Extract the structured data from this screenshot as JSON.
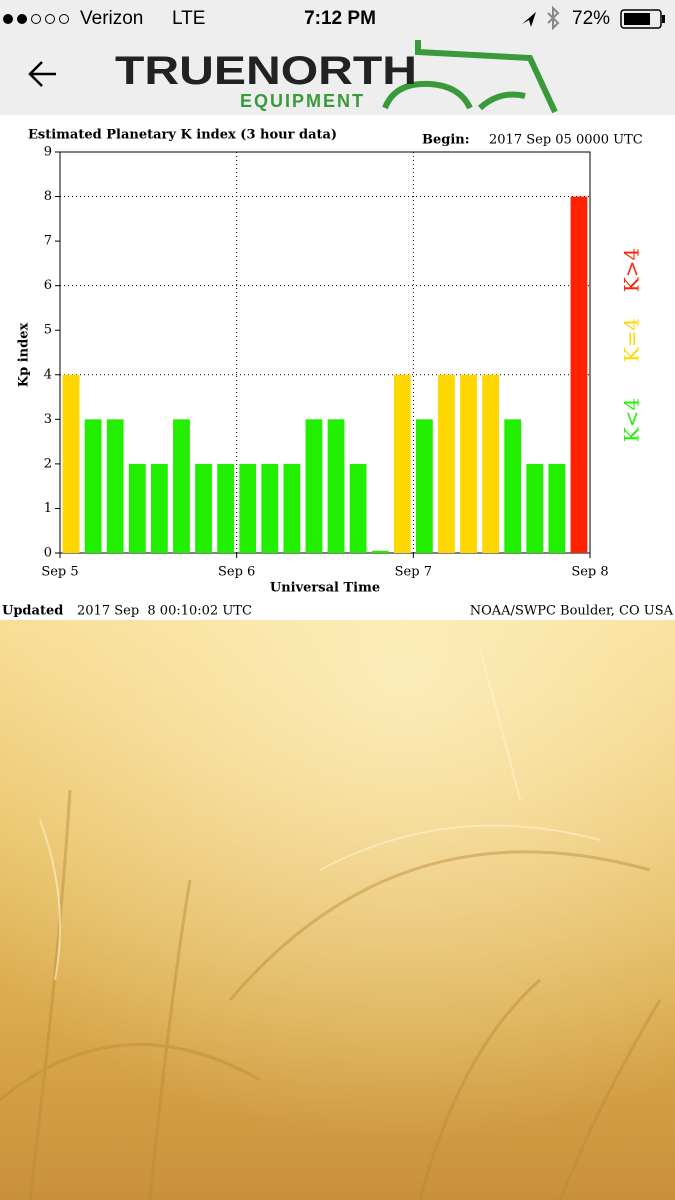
{
  "status_bar": {
    "carrier": "Verizon",
    "network": "LTE",
    "time": "7:12 PM",
    "battery": "72%"
  },
  "header": {
    "logo_title": "TRUENORTH",
    "logo_subtitle": "EQUIPMENT"
  },
  "chart_data": {
    "type": "bar",
    "title": "Estimated Planetary K index (3 hour data)",
    "begin_label": "Begin:",
    "begin_value": "2017 Sep 05 0000 UTC",
    "x_label": "Universal Time",
    "y_label": "Kp index",
    "categories": [
      null,
      null,
      null,
      null,
      null,
      null,
      null,
      null,
      null,
      null,
      null,
      null,
      null,
      null,
      null,
      null,
      null,
      null,
      null,
      null,
      null,
      null,
      null,
      null
    ],
    "values": [
      4,
      3,
      3,
      2,
      2,
      3,
      2,
      2,
      2,
      2,
      2,
      3,
      3,
      2,
      0.05,
      4,
      3,
      4,
      4,
      4,
      3,
      2,
      2,
      8
    ],
    "colors": [
      "#ffd700",
      "#22ee00",
      "#22ee00",
      "#22ee00",
      "#22ee00",
      "#22ee00",
      "#22ee00",
      "#22ee00",
      "#22ee00",
      "#22ee00",
      "#22ee00",
      "#22ee00",
      "#22ee00",
      "#22ee00",
      "#22ee00",
      "#ffd700",
      "#22ee00",
      "#ffd700",
      "#ffd700",
      "#ffd700",
      "#22ee00",
      "#22ee00",
      "#22ee00",
      "#ff2200"
    ],
    "xlim": [
      0,
      24
    ],
    "xticks": [
      {
        "value": 0,
        "label": "Sep 5"
      },
      {
        "value": 8,
        "label": "Sep 6"
      },
      {
        "value": 16,
        "label": "Sep 7"
      },
      {
        "value": 24,
        "label": "Sep 8"
      }
    ],
    "ylim": [
      0,
      9
    ],
    "yticks": [
      0,
      1,
      2,
      3,
      4,
      5,
      6,
      7,
      8,
      9
    ],
    "ygrid": [
      4,
      6,
      8
    ],
    "legend": [
      {
        "label": "K<4",
        "color": "#22ee00"
      },
      {
        "label": "K=4",
        "color": "#ffd700"
      },
      {
        "label": "K>4",
        "color": "#ff2200"
      }
    ],
    "updated_label": "Updated",
    "updated_value": "2017 Sep  8 00:10:02 UTC",
    "source": "NOAA/SWPC Boulder, CO USA"
  }
}
